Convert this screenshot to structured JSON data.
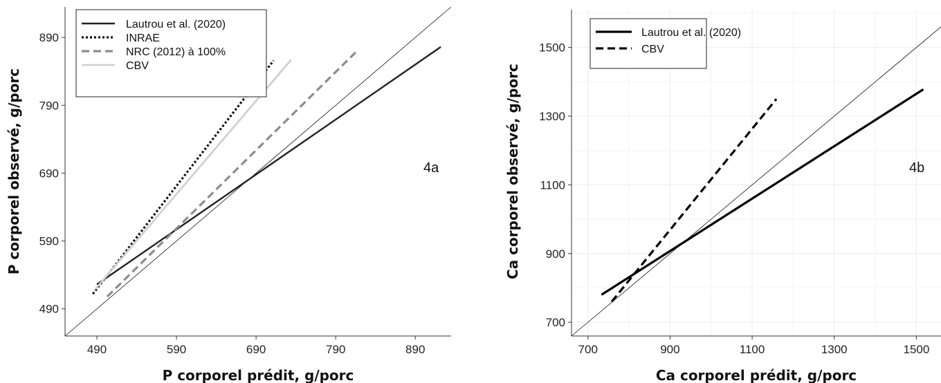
{
  "chart_data": [
    {
      "type": "line",
      "panel_label": "4a",
      "xlabel": "P corporel prédit, g/porc",
      "ylabel": "P corporel observé, g/porc",
      "xlim": [
        450,
        935
      ],
      "ylim": [
        450,
        935
      ],
      "xticks": [
        "490",
        "590",
        "690",
        "790",
        "890"
      ],
      "yticks": [
        "490",
        "590",
        "690",
        "790",
        "890"
      ],
      "grid": false,
      "legend_position": "top-left",
      "identity_line": true,
      "series": [
        {
          "name": "Lautrou et al. (2020)",
          "color": "#222222",
          "dash": "solid",
          "width": 2.4,
          "x": [
            490,
            922
          ],
          "y": [
            526,
            876
          ]
        },
        {
          "name": "INRAE",
          "color": "#111111",
          "dash": "dotted",
          "width": 3.2,
          "x": [
            485,
            712
          ],
          "y": [
            512,
            856
          ]
        },
        {
          "name": "NRC (2012) à 100%",
          "color": "#8c8c8c",
          "dash": "dashed",
          "width": 3.2,
          "x": [
            503,
            815
          ],
          "y": [
            508,
            868
          ]
        },
        {
          "name": "CBV",
          "color": "#d0d0d0",
          "dash": "solid",
          "width": 2.8,
          "x": [
            488,
            734
          ],
          "y": [
            519,
            857
          ]
        }
      ]
    },
    {
      "type": "line",
      "panel_label": "4b",
      "xlabel": "Ca corporel prédit, g/porc",
      "ylabel": "Ca corporel observé, g/porc",
      "xlim": [
        660,
        1560
      ],
      "ylim": [
        660,
        1610
      ],
      "xticks": [
        "700",
        "900",
        "1100",
        "1300",
        "1500"
      ],
      "yticks": [
        "700",
        "900",
        "1100",
        "1300",
        "1500"
      ],
      "grid": true,
      "legend_position": "top-left",
      "identity_line": true,
      "series": [
        {
          "name": "Lautrou et al. (2020)",
          "color": "#000000",
          "dash": "solid",
          "width": 3.2,
          "x": [
            733,
            1517
          ],
          "y": [
            780,
            1378
          ]
        },
        {
          "name": "CBV",
          "color": "#000000",
          "dash": "dashed",
          "width": 3.2,
          "x": [
            758,
            1159
          ],
          "y": [
            760,
            1350
          ]
        }
      ]
    }
  ]
}
